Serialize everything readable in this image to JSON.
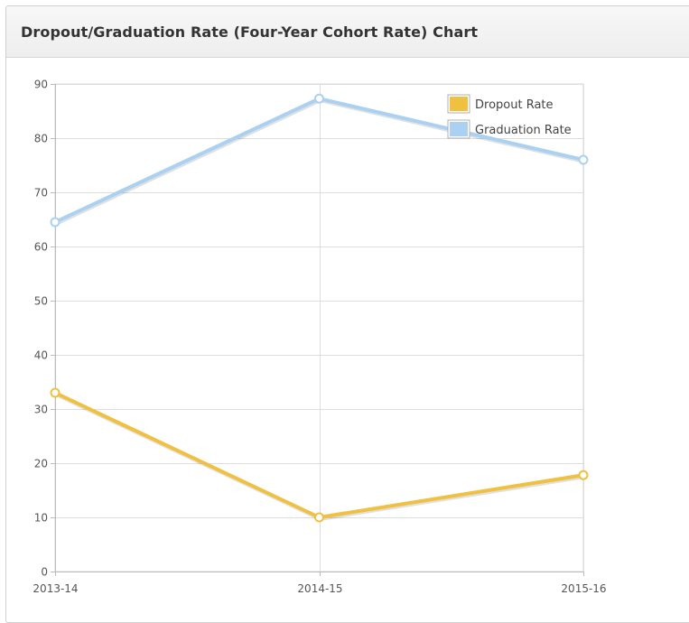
{
  "panel": {
    "title": "Dropout/Graduation Rate (Four-Year Cohort Rate) Chart"
  },
  "chart_data": {
    "type": "line",
    "title": "",
    "xlabel": "",
    "ylabel": "",
    "categories": [
      "2013-14",
      "2014-15",
      "2015-16"
    ],
    "ylim": [
      0,
      90
    ],
    "yticks": [
      0,
      10,
      20,
      30,
      40,
      50,
      60,
      70,
      80,
      90
    ],
    "grid": true,
    "legend_position": "top-right",
    "series": [
      {
        "name": "Dropout Rate",
        "color": "#f0c040",
        "values": [
          33,
          10,
          17.8
        ]
      },
      {
        "name": "Graduation Rate",
        "color": "#aad1f2",
        "values": [
          64.5,
          87.3,
          76
        ]
      }
    ]
  }
}
